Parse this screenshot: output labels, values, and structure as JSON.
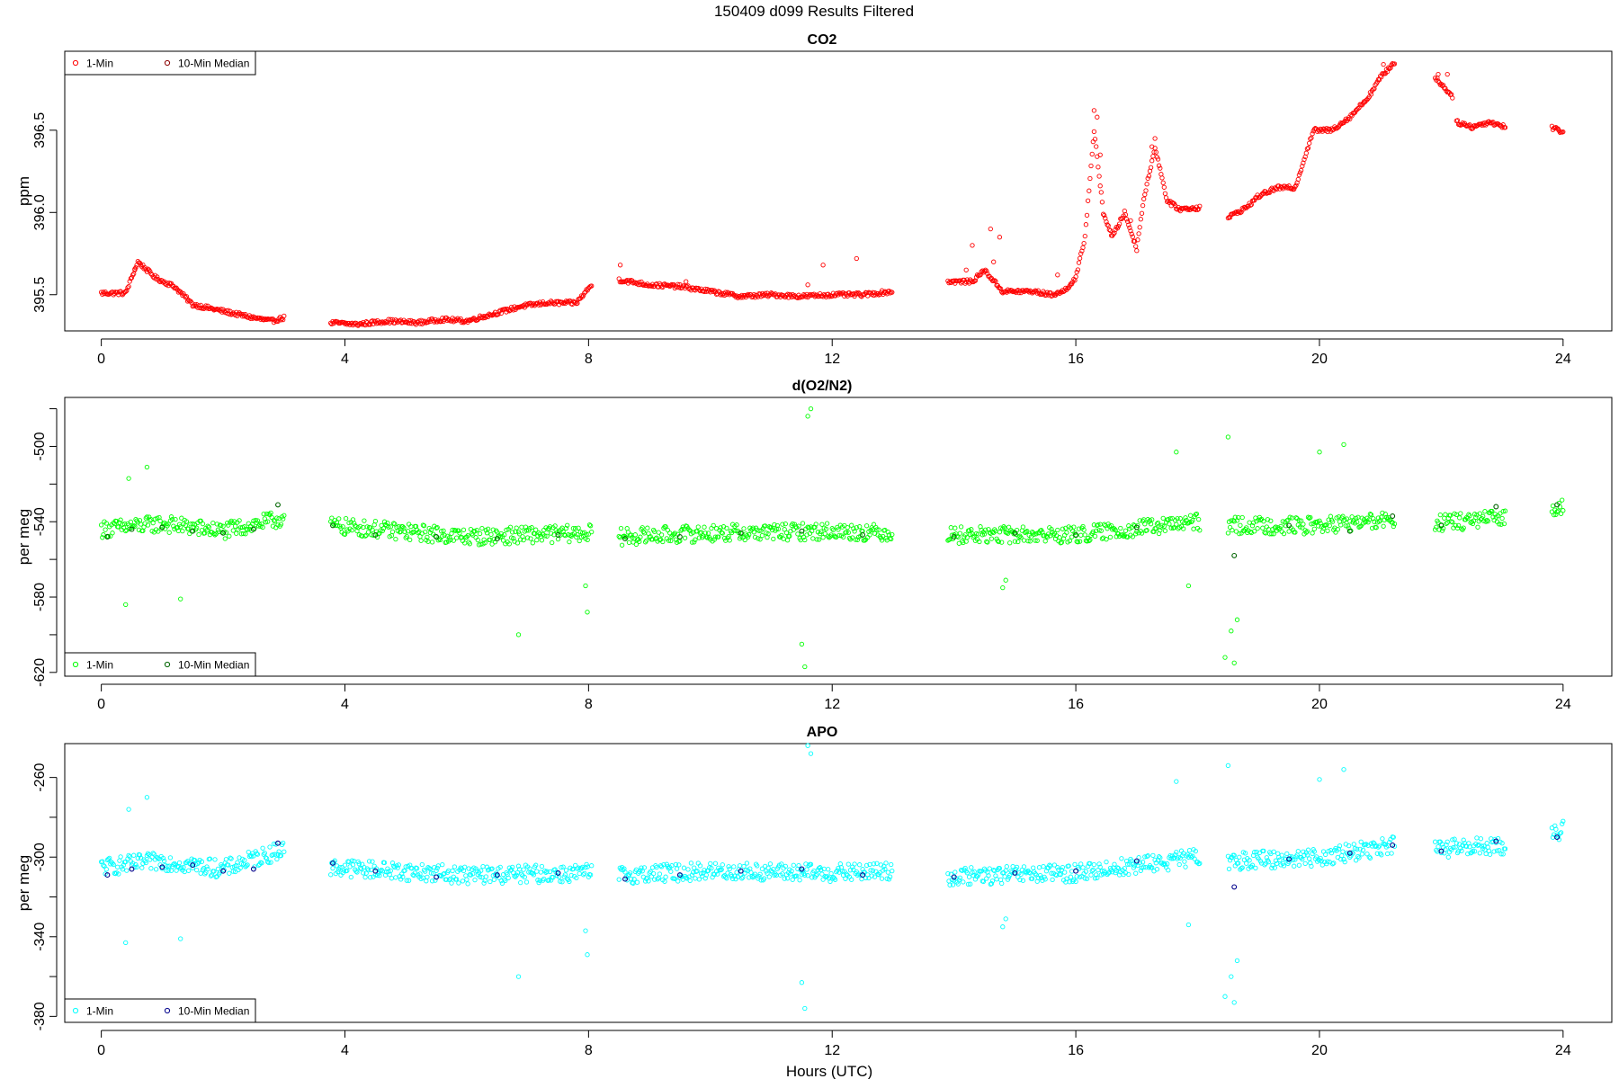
{
  "figure": {
    "title": "150409   d099   Results Filtered"
  },
  "chart_data": [
    {
      "type": "scatter",
      "title": "CO2",
      "xlabel": "",
      "ylabel": "ppm",
      "xlim": [
        -0.6,
        24.8
      ],
      "ylim": [
        395.28,
        396.98
      ],
      "xticks": [
        0,
        4,
        8,
        12,
        16,
        20,
        24
      ],
      "yticks": [
        395.5,
        396.0,
        396.5
      ],
      "ytick_labels": [
        "395.5",
        "396.0",
        "396.5"
      ],
      "legend": {
        "position": "top-left",
        "entries": [
          "1-Min",
          "10-Min Median"
        ]
      },
      "colors": {
        "one_min": "#ff0000",
        "median": "#8b0000"
      },
      "noise": 0.012,
      "segments": [
        [
          0.0,
          3.0
        ],
        [
          3.75,
          8.05
        ],
        [
          8.5,
          13.0
        ],
        [
          13.9,
          18.05
        ],
        [
          18.5,
          21.25
        ],
        [
          21.9,
          22.2
        ],
        [
          22.25,
          23.05
        ],
        [
          23.8,
          24.0
        ]
      ],
      "series": [
        {
          "name": "1-Min",
          "x": [
            0.0,
            0.4,
            0.6,
            0.9,
            1.2,
            1.5,
            2.0,
            2.5,
            2.8,
            3.0,
            3.75,
            4.2,
            4.7,
            5.2,
            5.6,
            6.0,
            6.4,
            6.9,
            7.3,
            7.8,
            8.05,
            8.5,
            9.0,
            9.5,
            10.0,
            10.5,
            11.0,
            11.5,
            12.0,
            12.5,
            13.0,
            13.9,
            14.3,
            14.5,
            14.8,
            15.3,
            15.6,
            15.8,
            16.0,
            16.15,
            16.3,
            16.45,
            16.6,
            16.8,
            17.0,
            17.1,
            17.3,
            17.5,
            17.7,
            18.05,
            18.5,
            18.8,
            19.0,
            19.3,
            19.6,
            19.9,
            20.2,
            20.5,
            20.8,
            21.0,
            21.25,
            21.9,
            22.2,
            22.25,
            22.5,
            22.8,
            23.05,
            23.8,
            24.0
          ],
          "y": [
            395.51,
            395.51,
            395.7,
            395.6,
            395.55,
            395.44,
            395.4,
            395.36,
            395.34,
            395.36,
            395.33,
            395.32,
            395.34,
            395.33,
            395.35,
            395.34,
            395.38,
            395.43,
            395.45,
            395.45,
            395.56,
            395.59,
            395.56,
            395.55,
            395.52,
            395.49,
            395.5,
            395.49,
            395.5,
            395.5,
            395.52,
            395.58,
            395.58,
            395.65,
            395.52,
            395.52,
            395.5,
            395.52,
            395.6,
            395.85,
            396.5,
            396.0,
            395.85,
            396.0,
            395.78,
            396.05,
            396.4,
            396.07,
            396.02,
            396.03,
            395.97,
            396.03,
            396.1,
            396.15,
            396.15,
            396.5,
            396.5,
            396.58,
            396.7,
            396.82,
            396.92,
            396.82,
            396.7,
            396.55,
            396.52,
            396.55,
            396.52,
            396.52,
            396.49
          ]
        },
        {
          "name": "10-Min Median",
          "x": [],
          "y": []
        }
      ],
      "outliers": {
        "x": [
          0.55,
          8.52,
          14.2,
          14.3,
          14.6,
          14.65,
          14.75,
          15.7,
          16.3,
          16.35,
          16.4,
          16.9,
          17.25,
          17.3,
          21.95,
          22.1,
          21.05,
          11.85,
          12.4,
          9.6,
          11.6
        ],
        "y": [
          395.65,
          395.68,
          395.65,
          395.8,
          395.9,
          395.7,
          395.85,
          395.62,
          396.62,
          396.58,
          396.35,
          395.95,
          396.4,
          396.45,
          396.84,
          396.84,
          396.9,
          395.68,
          395.72,
          395.58,
          395.56
        ]
      }
    },
    {
      "type": "scatter",
      "title": "d(O2/N2)",
      "xlabel": "",
      "ylabel": "per meg",
      "xlim": [
        -0.6,
        24.8
      ],
      "ylim": [
        -622,
        -474
      ],
      "xticks": [
        0,
        4,
        8,
        12,
        16,
        20,
        24
      ],
      "yticks": [
        -500,
        -540,
        -580,
        -620
      ],
      "ytick_labels": [
        "-500",
        "-540",
        "-580",
        "-620"
      ],
      "minor_yticks": [
        -480,
        -520,
        -560,
        -600
      ],
      "legend": {
        "position": "bottom-left",
        "entries": [
          "1-Min",
          "10-Min Median"
        ]
      },
      "colors": {
        "one_min": "#00ff00",
        "median": "#006400"
      },
      "noise": 4.5,
      "segments": [
        [
          0.0,
          3.0
        ],
        [
          3.75,
          8.05
        ],
        [
          8.5,
          13.0
        ],
        [
          13.9,
          18.05
        ],
        [
          18.5,
          21.25
        ],
        [
          21.9,
          23.05
        ],
        [
          23.8,
          24.0
        ]
      ],
      "series": [
        {
          "name": "1-Min",
          "x": [
            0.0,
            1.0,
            2.0,
            3.0,
            3.75,
            6.0,
            8.05,
            8.5,
            10.0,
            12.0,
            13.0,
            13.9,
            16.0,
            18.05,
            18.5,
            20.0,
            21.25,
            21.9,
            23.05,
            23.8,
            24.0
          ],
          "y": [
            -544,
            -541,
            -545,
            -538,
            -542,
            -548,
            -546,
            -548,
            -546,
            -545,
            -546,
            -547,
            -547,
            -540,
            -542,
            -542,
            -539,
            -541,
            -538,
            -533,
            -531
          ]
        },
        {
          "name": "10-Min Median",
          "x": [
            0.1,
            0.5,
            1.0,
            1.5,
            2.0,
            2.5,
            2.9,
            3.8,
            4.5,
            5.5,
            6.5,
            7.5,
            8.6,
            9.5,
            10.5,
            11.5,
            12.5,
            14.0,
            15.0,
            16.0,
            17.0,
            18.6,
            19.5,
            20.5,
            21.2,
            22.0,
            22.9,
            23.9
          ],
          "y": [
            -548,
            -544,
            -543,
            -545,
            -546,
            -544,
            -531,
            -542,
            -547,
            -548,
            -549,
            -547,
            -549,
            -548,
            -546,
            -545,
            -547,
            -548,
            -546,
            -547,
            -543,
            -558,
            -542,
            -545,
            -537,
            -542,
            -532,
            -531
          ]
        }
      ],
      "outliers": {
        "x": [
          0.4,
          0.75,
          1.3,
          0.45,
          6.85,
          11.5,
          11.55,
          11.6,
          11.65,
          18.5,
          18.55,
          18.6,
          18.65,
          18.45,
          17.65,
          17.85,
          20.0,
          20.4,
          7.95,
          7.98,
          14.8,
          14.85
        ],
        "y": [
          -584,
          -511,
          -581,
          -517,
          -600,
          -605,
          -617,
          -484,
          -480,
          -495,
          -598,
          -615,
          -592,
          -612,
          -503,
          -574,
          -503,
          -499,
          -574,
          -588,
          -575,
          -571
        ]
      }
    },
    {
      "type": "scatter",
      "title": "APO",
      "xlabel": "Hours (UTC)",
      "ylabel": "per meg",
      "xlim": [
        -0.6,
        24.8
      ],
      "ylim": [
        -383,
        -243
      ],
      "xticks": [
        0,
        4,
        8,
        12,
        16,
        20,
        24
      ],
      "yticks": [
        -260,
        -300,
        -340,
        -380
      ],
      "ytick_labels": [
        "-260",
        "-300",
        "-340",
        "-380"
      ],
      "minor_yticks": [
        -280,
        -320,
        -360
      ],
      "legend": {
        "position": "bottom-left",
        "entries": [
          "1-Min",
          "10-Min Median"
        ]
      },
      "colors": {
        "one_min": "#00ffff",
        "median": "#00008b"
      },
      "noise": 4.5,
      "segments": [
        [
          0.0,
          3.0
        ],
        [
          3.75,
          8.05
        ],
        [
          8.5,
          13.0
        ],
        [
          13.9,
          18.05
        ],
        [
          18.5,
          21.25
        ],
        [
          21.9,
          23.05
        ],
        [
          23.8,
          24.0
        ]
      ],
      "series": [
        {
          "name": "1-Min",
          "x": [
            0.0,
            1.0,
            2.0,
            3.0,
            3.75,
            6.0,
            8.05,
            8.5,
            10.0,
            12.0,
            13.0,
            13.9,
            16.0,
            18.05,
            18.5,
            20.0,
            21.25,
            21.9,
            23.05,
            23.8,
            24.0
          ],
          "y": [
            -305,
            -302,
            -306,
            -296,
            -305,
            -309,
            -308,
            -309,
            -307,
            -308,
            -307,
            -310,
            -308,
            -300,
            -302,
            -300,
            -294,
            -296,
            -294,
            -289,
            -286
          ]
        },
        {
          "name": "10-Min Median",
          "x": [
            0.1,
            0.5,
            1.0,
            1.5,
            2.0,
            2.5,
            2.9,
            3.8,
            4.5,
            5.5,
            6.5,
            7.5,
            8.6,
            9.5,
            10.5,
            11.5,
            12.5,
            14.0,
            15.0,
            16.0,
            17.0,
            18.6,
            19.5,
            20.5,
            21.2,
            22.0,
            22.9,
            23.9
          ],
          "y": [
            -309,
            -306,
            -305,
            -304,
            -307,
            -306,
            -293,
            -303,
            -307,
            -310,
            -309,
            -308,
            -311,
            -309,
            -307,
            -306,
            -309,
            -310,
            -308,
            -307,
            -302,
            -315,
            -301,
            -298,
            -294,
            -297,
            -292,
            -290
          ]
        }
      ],
      "outliers": {
        "x": [
          0.4,
          0.75,
          1.3,
          0.45,
          6.85,
          11.5,
          11.55,
          11.6,
          11.65,
          18.5,
          18.55,
          18.6,
          18.65,
          18.45,
          17.65,
          17.85,
          20.0,
          20.4,
          7.95,
          7.98,
          14.8,
          14.85
        ],
        "y": [
          -343,
          -270,
          -341,
          -276,
          -360,
          -363,
          -376,
          -244,
          -248,
          -254,
          -360,
          -373,
          -352,
          -370,
          -262,
          -334,
          -261,
          -256,
          -337,
          -349,
          -335,
          -331
        ]
      }
    }
  ]
}
